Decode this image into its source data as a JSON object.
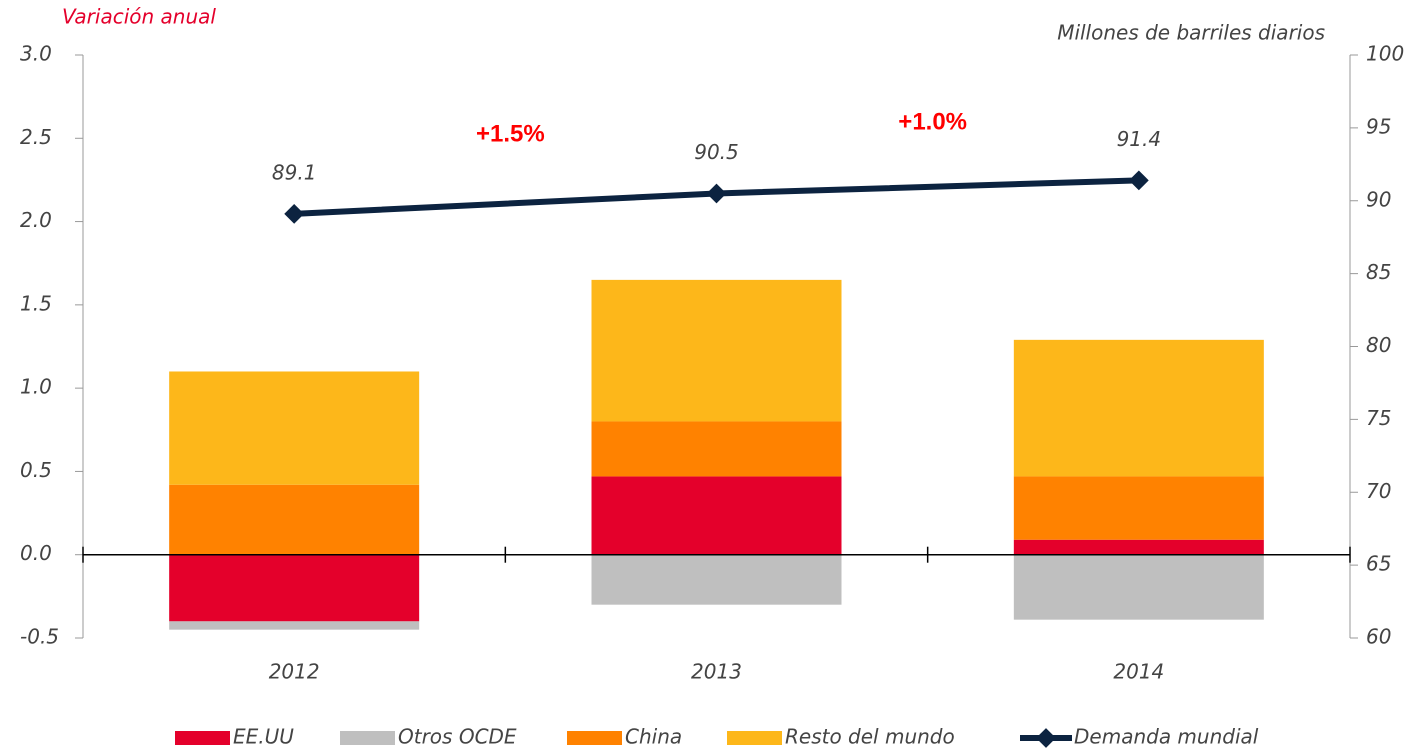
{
  "chart_data": {
    "type": "bar",
    "title_left": "Variación anual",
    "title_right": "Millones de barriles diarios",
    "stacked": true,
    "categories": [
      "2012",
      "2013",
      "2014"
    ],
    "series": [
      {
        "name": "EE.UU",
        "color": "#e4002b",
        "values": [
          -0.4,
          0.47,
          0.09
        ]
      },
      {
        "name": "Otros OCDE",
        "color": "#bfbfbf",
        "values": [
          -0.05,
          -0.3,
          -0.39
        ]
      },
      {
        "name": "China",
        "color": "#ff8200",
        "values": [
          0.42,
          0.33,
          0.38
        ]
      },
      {
        "name": "Resto del mundo",
        "color": "#fdb71a",
        "values": [
          0.68,
          0.85,
          0.82
        ]
      },
      {
        "name": "Demanda mundial",
        "type": "line",
        "axis": "y2",
        "color": "#0c2340",
        "values": [
          89.1,
          90.5,
          91.4
        ]
      }
    ],
    "annotations": [
      "+1.5%",
      "+1.0%"
    ],
    "ylim": [
      -0.5,
      3.0
    ],
    "yticks": [
      {
        "value": 3.0,
        "label": "3.0"
      },
      2.5,
      {
        "value": 2.0,
        "label": "2.0"
      },
      1.5,
      {
        "value": 1.0,
        "label": "1.0"
      },
      0.5,
      {
        "value": 0.0,
        "label": "0.0"
      },
      -0.5
    ],
    "y2lim": [
      60,
      100
    ],
    "y2ticks": [
      100,
      95,
      90,
      85,
      80,
      75,
      70,
      65,
      60
    ]
  }
}
